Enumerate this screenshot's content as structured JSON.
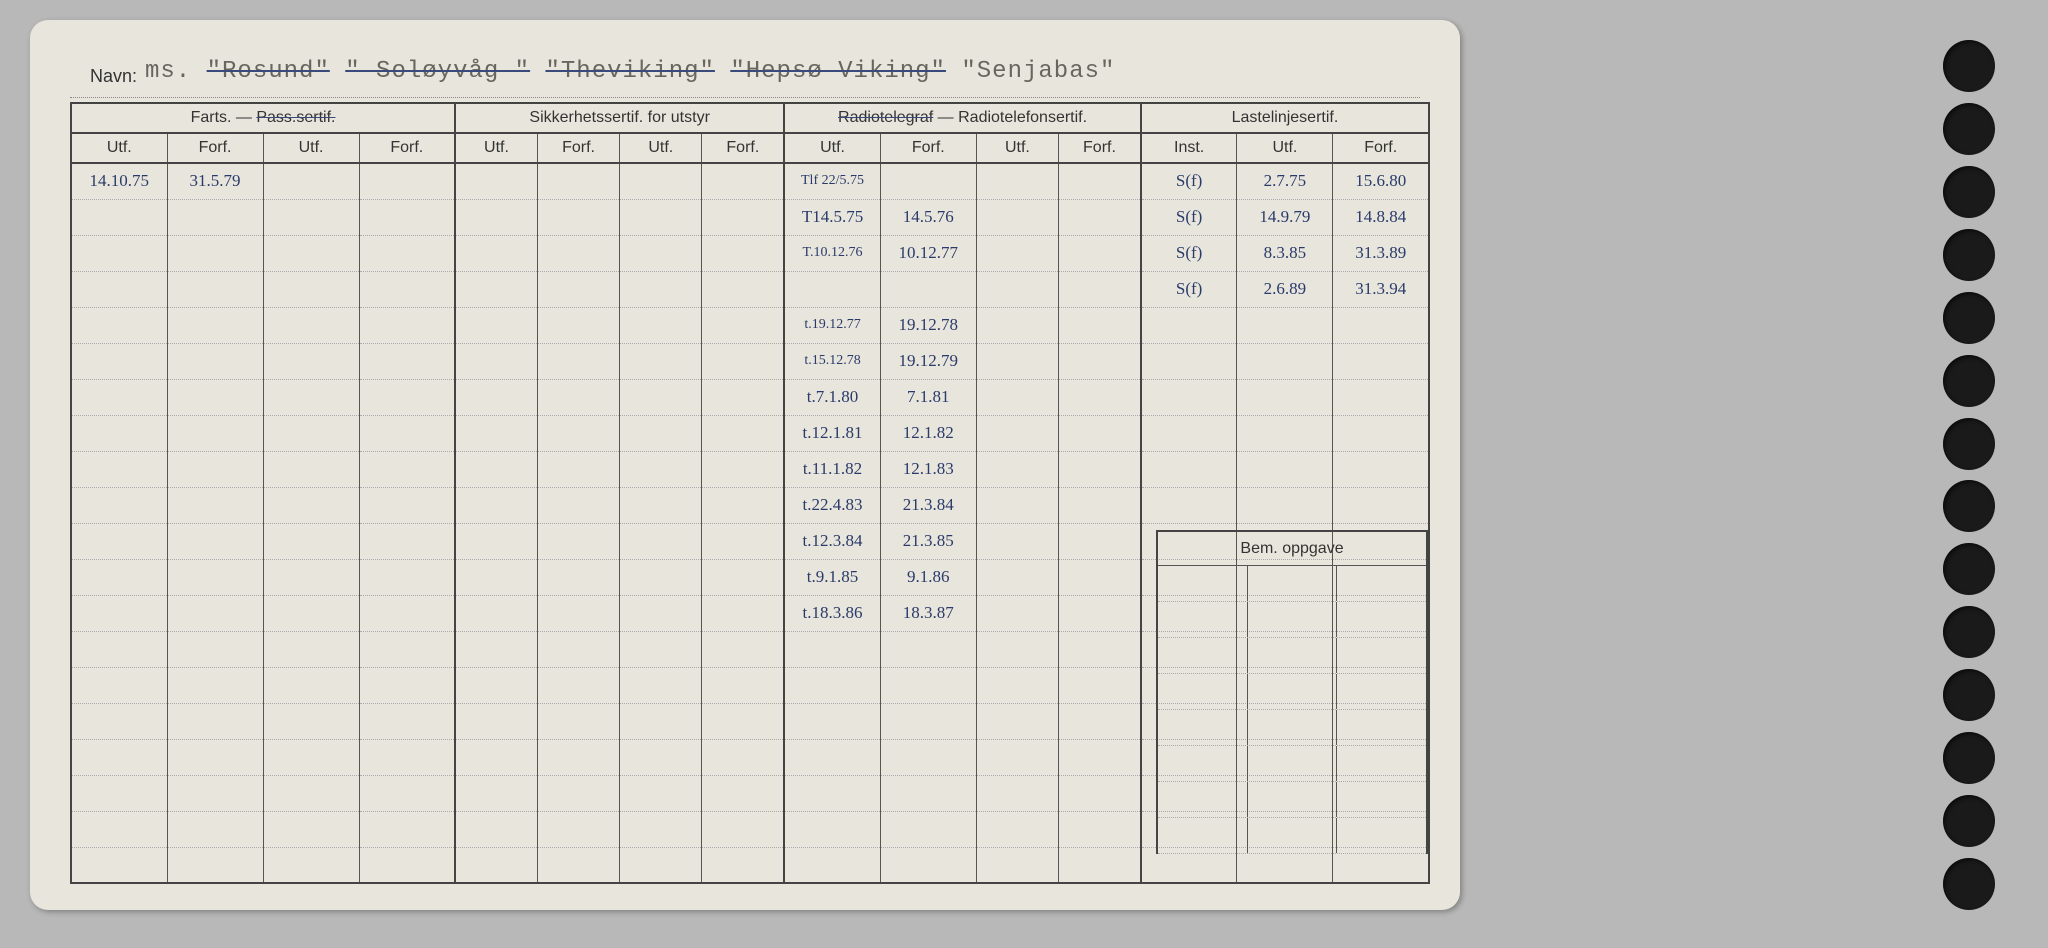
{
  "labels": {
    "navn": "Navn:",
    "farts": "Farts. —",
    "pass_sertif": "Pass.sertif.",
    "sikkerhet": "Sikkerhetssertif. for utstyr",
    "radio": "Radiotelegraf — Radiotelefonsertif.",
    "radio_struck": "Radiotelegraf",
    "radio_rest": " — Radiotelefonsertif.",
    "laste": "Lastelinjesertif.",
    "utf": "Utf.",
    "forf": "Forf.",
    "inst": "Inst.",
    "bem": "Bem. oppgave"
  },
  "title": {
    "prefix": "ms.",
    "names": [
      {
        "text": "\"Rosund\"",
        "struck": true
      },
      {
        "text": "\" Soløyvåg \"",
        "struck": true
      },
      {
        "text": "\"Theviking\"",
        "struck": true
      },
      {
        "text": "\"Hepsø Viking\"",
        "struck": true
      },
      {
        "text": "\"Senjabas\"",
        "struck": false
      }
    ]
  },
  "columns": {
    "widths_pct": [
      7,
      7,
      7,
      7,
      6,
      6,
      6,
      6,
      7,
      7,
      6,
      6,
      7,
      7,
      7
    ]
  },
  "rows": [
    {
      "c0": "14.10.75",
      "c1": "31.5.79",
      "c8": "Tlf 22/5.75",
      "c12": "S(f)",
      "c13": "2.7.75",
      "c14": "15.6.80"
    },
    {
      "c8": "T14.5.75",
      "c9": "14.5.76",
      "c12": "S(f)",
      "c13": "14.9.79",
      "c14": "14.8.84"
    },
    {
      "c8": "T.10.12.76",
      "c9": "10.12.77",
      "c12": "S(f)",
      "c13": "8.3.85",
      "c14": "31.3.89"
    },
    {
      "c12": "S(f)",
      "c13": "2.6.89",
      "c14": "31.3.94"
    },
    {
      "c8": "t.19.12.77",
      "c9": "19.12.78"
    },
    {
      "c8": "t.15.12.78",
      "c9": "19.12.79"
    },
    {
      "c8": "t.7.1.80",
      "c9": "7.1.81"
    },
    {
      "c8": "t.12.1.81",
      "c9": "12.1.82"
    },
    {
      "c8": "t.11.1.82",
      "c9": "12.1.83"
    },
    {
      "c8": "t.22.4.83",
      "c9": "21.3.84"
    },
    {
      "c8": "t.12.3.84",
      "c9": "21.3.85"
    },
    {
      "c8": "t.9.1.85",
      "c9": "9.1.86"
    },
    {
      "c8": "t.18.3.86",
      "c9": "18.3.87"
    },
    {},
    {},
    {},
    {},
    {},
    {},
    {}
  ],
  "colors": {
    "paper": "#e8e6dc",
    "ink_print": "#333333",
    "ink_hand": "#2a3a6a",
    "border": "#444444",
    "dotted": "#aaaaaa",
    "bg": "#b8b8b8",
    "hole": "#1a1a1a"
  }
}
